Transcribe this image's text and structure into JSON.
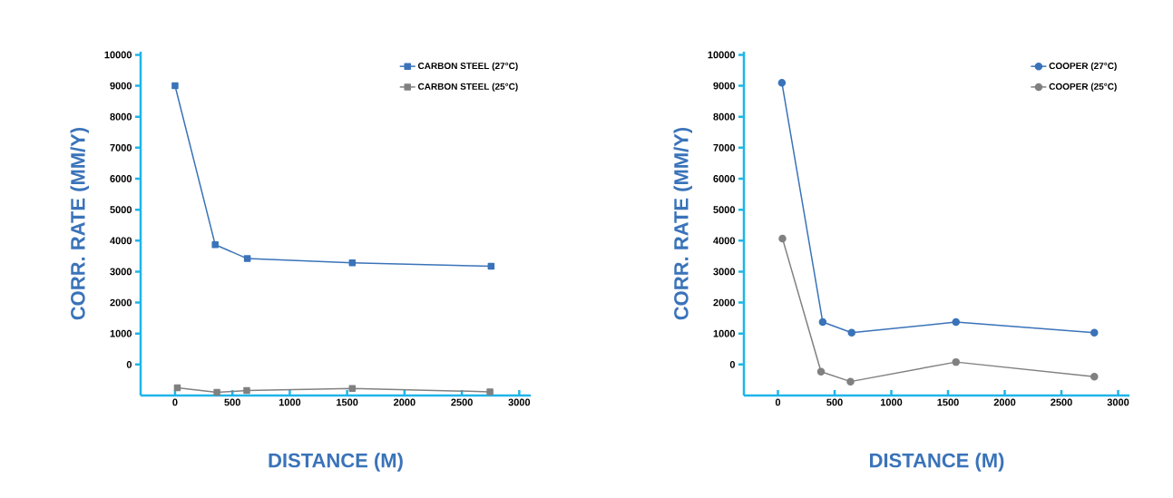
{
  "chart_data": [
    {
      "type": "line",
      "xlabel": "DISTANCE (M)",
      "ylabel": "CORR. RATE (MM/Y)",
      "xlim": [
        -300,
        3100
      ],
      "xticks": [
        0,
        500,
        1000,
        1500,
        2000,
        2500,
        3000
      ],
      "ylim": [
        -1000,
        10100
      ],
      "yticks": [
        0,
        1000,
        2000,
        3000,
        4000,
        5000,
        6000,
        7000,
        8000,
        9000,
        10000
      ],
      "marker": "square",
      "line_style": "solid",
      "legend": "top right",
      "series": [
        {
          "name": "CARBON STEEL (27°C)",
          "color": "#3a73b9",
          "x": [
            0,
            350,
            630,
            1545,
            2755
          ],
          "values": [
            9000,
            3870,
            3420,
            3280,
            3170
          ]
        },
        {
          "name": "CARBON STEEL (25°C)",
          "color": "#808080",
          "x": [
            20,
            365,
            625,
            1545,
            2745
          ],
          "values": [
            -750,
            -900,
            -840,
            -770,
            -880
          ]
        }
      ]
    },
    {
      "type": "line",
      "xlabel": "DISTANCE (M)",
      "ylabel": "CORR. RATE (MM/Y)",
      "xlim": [
        -300,
        3100
      ],
      "xticks": [
        0,
        500,
        1000,
        1500,
        2000,
        2500,
        3000
      ],
      "ylim": [
        -1000,
        10100
      ],
      "yticks": [
        0,
        1000,
        2000,
        3000,
        4000,
        5000,
        6000,
        7000,
        8000,
        9000,
        10000
      ],
      "marker": "circle",
      "line_style": "solid",
      "legend": "top right",
      "series": [
        {
          "name": "COOPER (27°C)",
          "color": "#3a73b9",
          "x": [
            35,
            395,
            650,
            1570,
            2790
          ],
          "values": [
            9100,
            1370,
            1030,
            1370,
            1030
          ]
        },
        {
          "name": "COOPER (25°C)",
          "color": "#808080",
          "x": [
            40,
            380,
            640,
            1570,
            2790
          ],
          "values": [
            4070,
            -230,
            -550,
            80,
            -390
          ]
        }
      ]
    }
  ]
}
